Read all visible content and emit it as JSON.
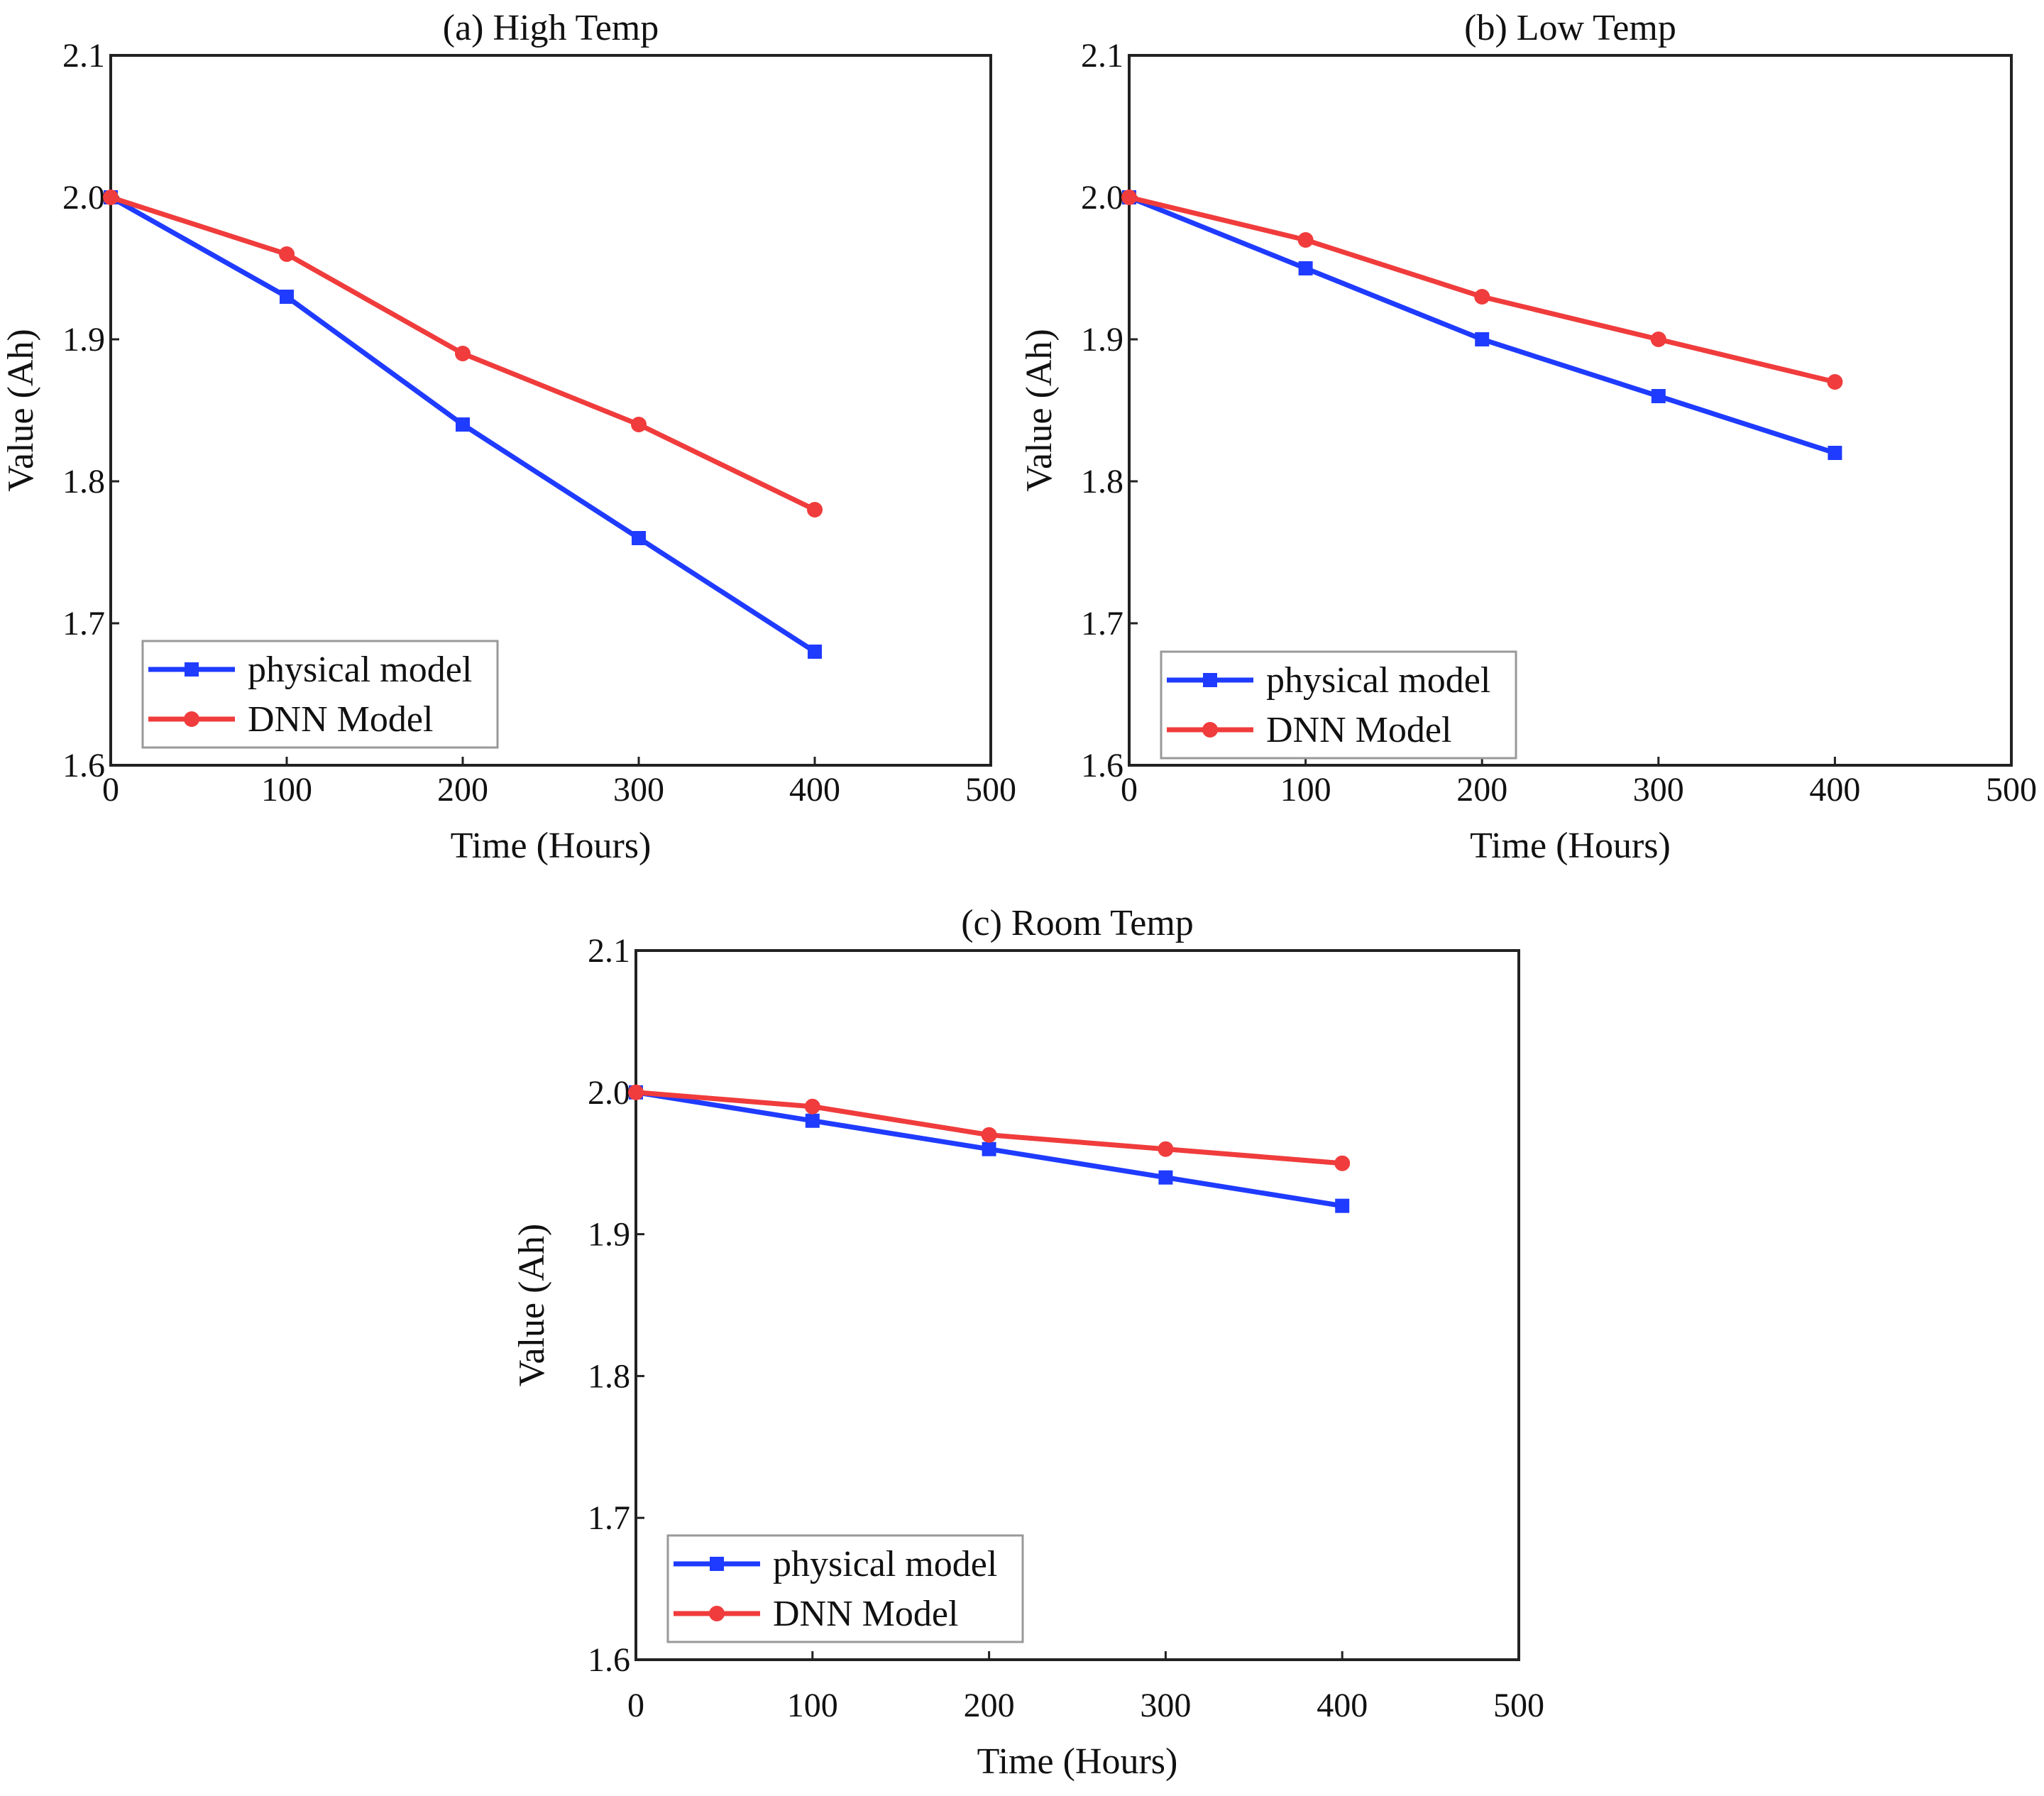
{
  "chart_data": [
    {
      "type": "line",
      "title": "(a) High Temp",
      "xlabel": "Time (Hours)",
      "ylabel": "Value (Ah)",
      "xlim": [
        0,
        500
      ],
      "ylim": [
        1.6,
        2.1
      ],
      "xticks": [
        "0",
        "100",
        "200",
        "300",
        "400",
        "500"
      ],
      "yticks": [
        "1.6",
        "1.7",
        "1.8",
        "1.9",
        "2.0",
        "2.1"
      ],
      "x": [
        0,
        100,
        200,
        300,
        400
      ],
      "legend_position": "bottom-left",
      "series": [
        {
          "name": "physical model",
          "color": "#1f3bff",
          "marker": "square",
          "values": [
            2.0,
            1.93,
            1.84,
            1.76,
            1.68
          ]
        },
        {
          "name": "DNN Model",
          "color": "#f03c3c",
          "marker": "circle",
          "values": [
            2.0,
            1.96,
            1.89,
            1.84,
            1.78
          ]
        }
      ]
    },
    {
      "type": "line",
      "title": "(b) Low Temp",
      "xlabel": "Time (Hours)",
      "ylabel": "Value (Ah)",
      "xlim": [
        0,
        500
      ],
      "ylim": [
        1.6,
        2.1
      ],
      "xticks": [
        "0",
        "100",
        "200",
        "300",
        "400",
        "500"
      ],
      "yticks": [
        "1.6",
        "1.7",
        "1.8",
        "1.9",
        "2.0",
        "2.1"
      ],
      "x": [
        0,
        100,
        200,
        300,
        400
      ],
      "legend_position": "bottom-left",
      "series": [
        {
          "name": "physical model",
          "color": "#1f3bff",
          "marker": "square",
          "values": [
            2.0,
            1.95,
            1.9,
            1.86,
            1.82
          ]
        },
        {
          "name": "DNN Model",
          "color": "#f03c3c",
          "marker": "circle",
          "values": [
            2.0,
            1.97,
            1.93,
            1.9,
            1.87
          ]
        }
      ]
    },
    {
      "type": "line",
      "title": "(c) Room Temp",
      "xlabel": "Time (Hours)",
      "ylabel": "Value (Ah)",
      "xlim": [
        0,
        500
      ],
      "ylim": [
        1.6,
        2.1
      ],
      "xticks": [
        "0",
        "100",
        "200",
        "300",
        "400",
        "500"
      ],
      "yticks": [
        "1.6",
        "1.7",
        "1.8",
        "1.9",
        "2.0",
        "2.1"
      ],
      "x": [
        0,
        100,
        200,
        300,
        400
      ],
      "legend_position": "bottom-left",
      "series": [
        {
          "name": "physical model",
          "color": "#1f3bff",
          "marker": "square",
          "values": [
            2.0,
            1.98,
            1.96,
            1.94,
            1.92
          ]
        },
        {
          "name": "DNN Model",
          "color": "#f03c3c",
          "marker": "circle",
          "values": [
            2.0,
            1.99,
            1.97,
            1.96,
            1.95
          ]
        }
      ]
    }
  ]
}
